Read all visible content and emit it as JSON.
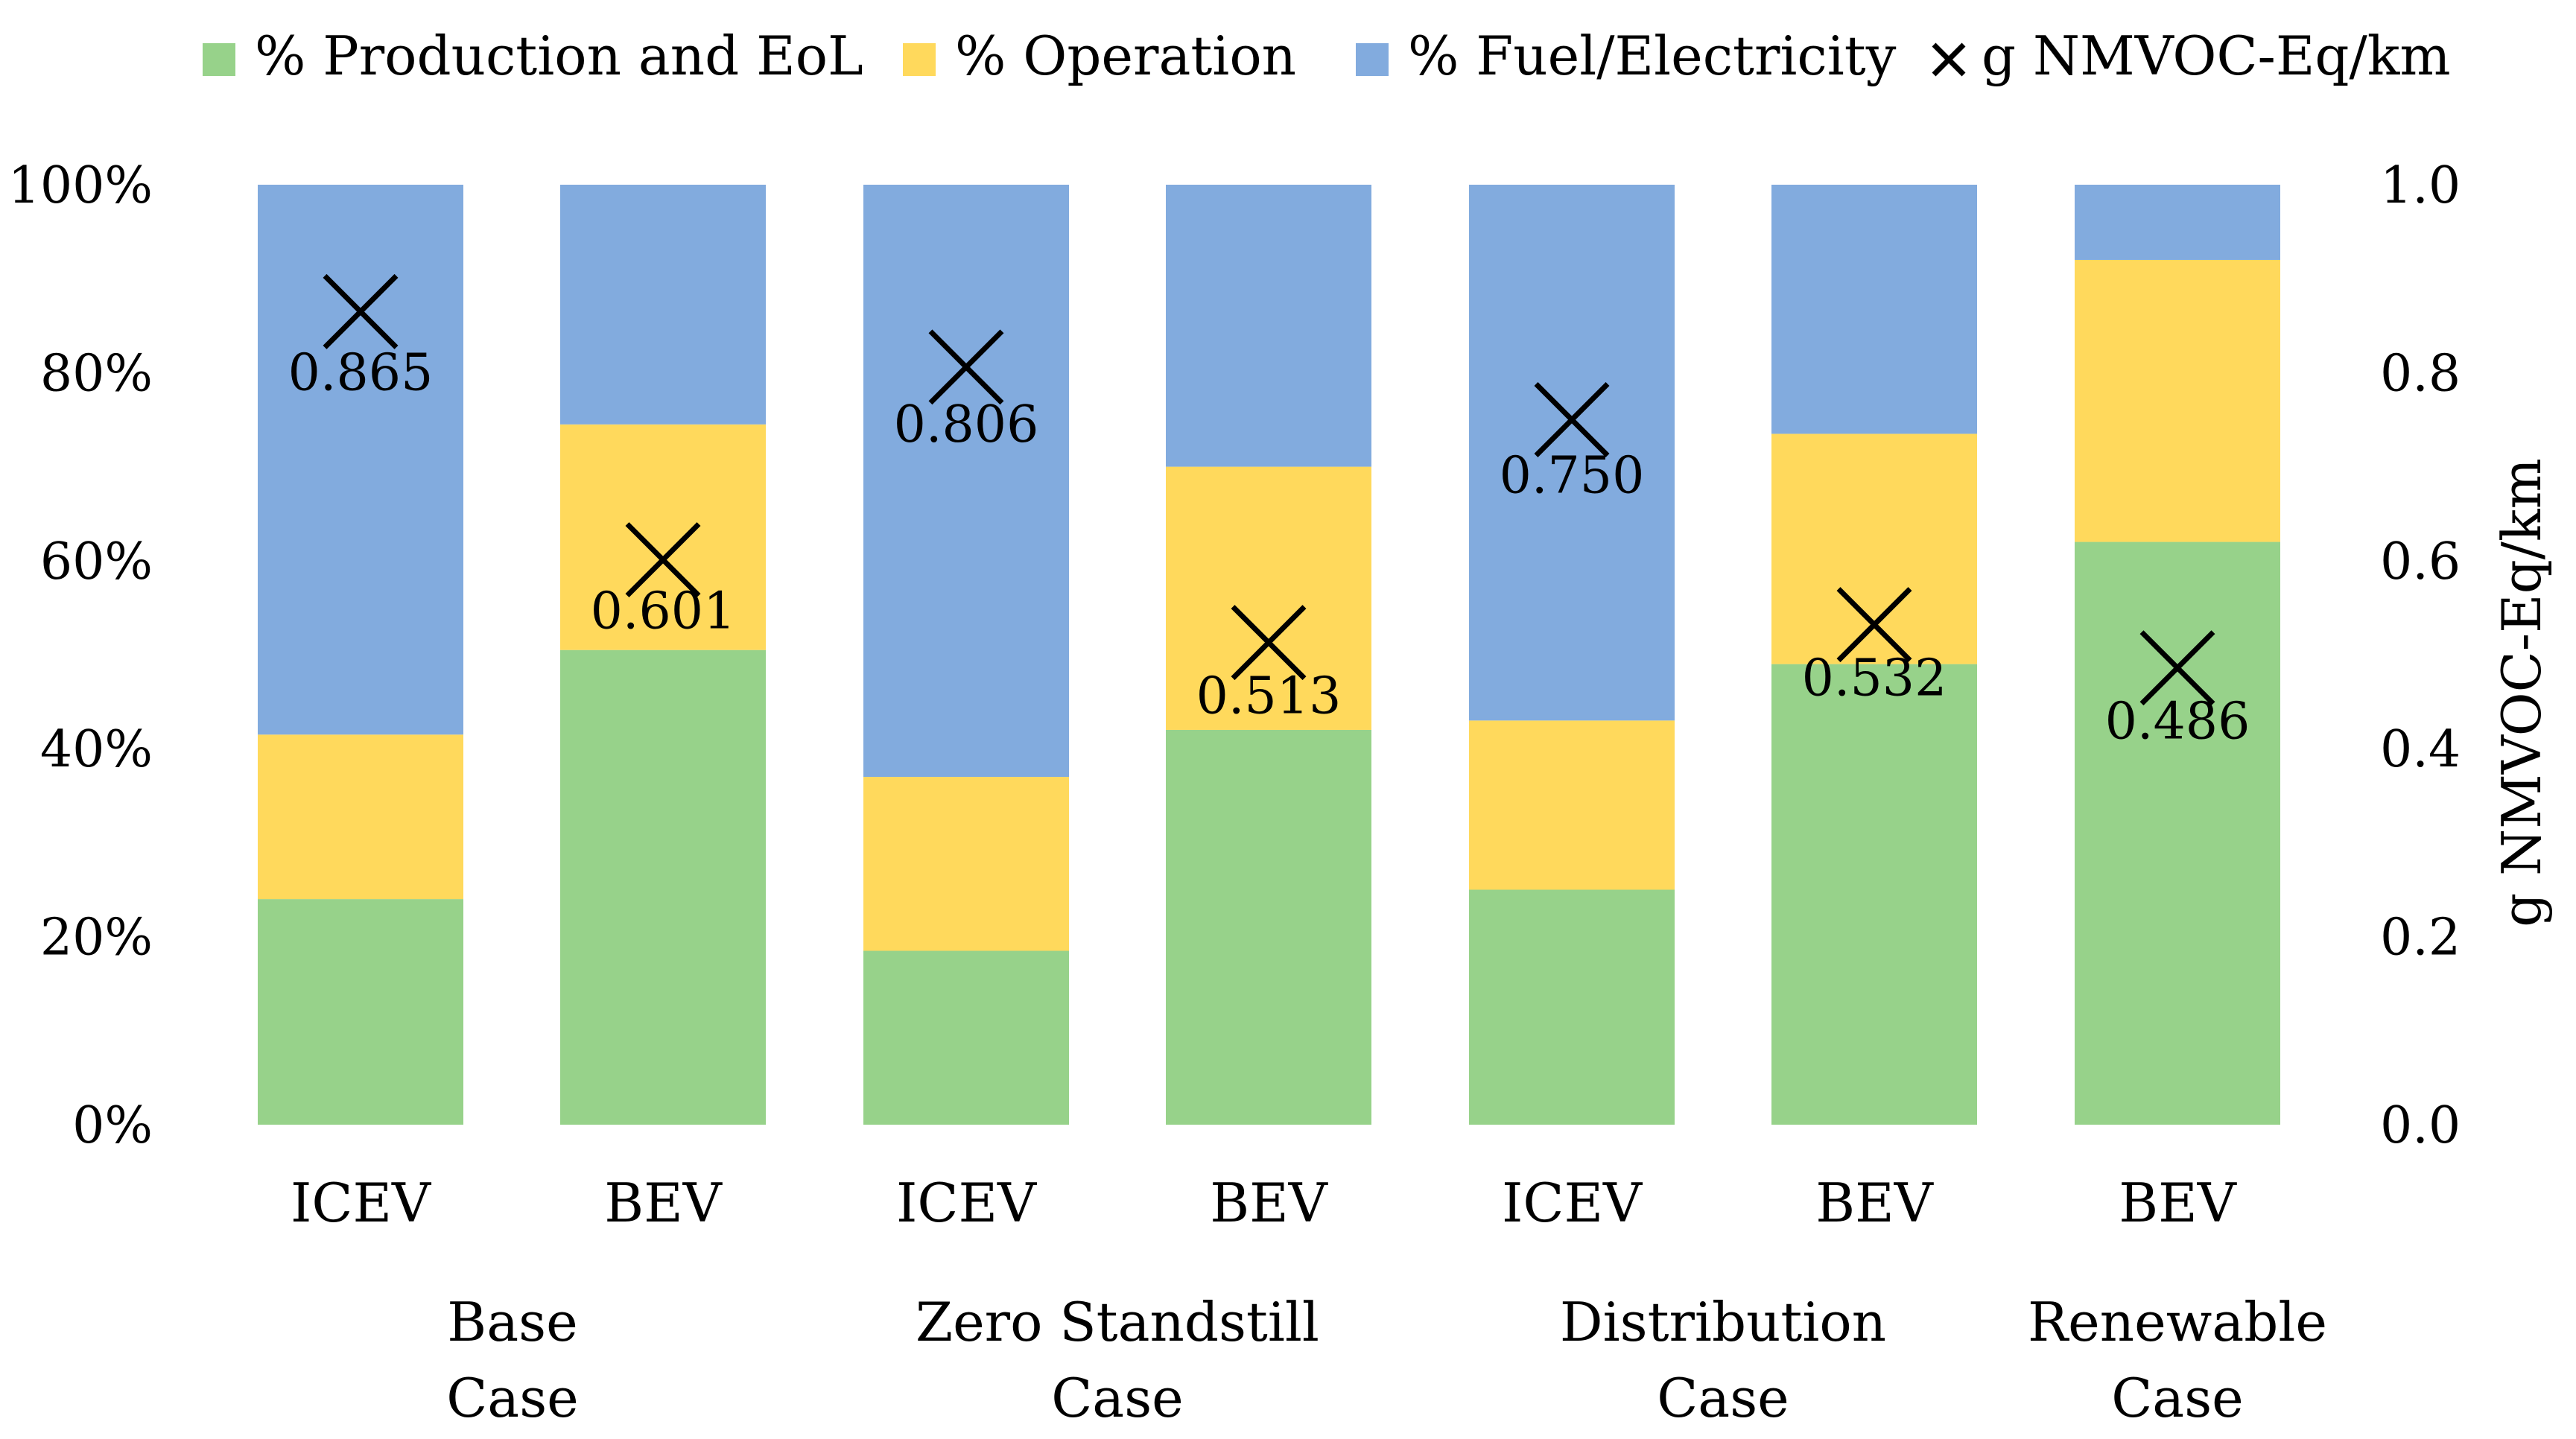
{
  "chart_data": {
    "type": "bar",
    "stacked": true,
    "normalized": true,
    "categories": [
      "ICEV",
      "BEV",
      "ICEV",
      "BEV",
      "ICEV",
      "BEV",
      "BEV"
    ],
    "groups": [
      {
        "label_line1": "Base",
        "label_line2": "Case",
        "members": [
          0,
          1
        ]
      },
      {
        "label_line1": "Zero Standstill",
        "label_line2": "Case",
        "members": [
          2,
          3
        ]
      },
      {
        "label_line1": "Distribution",
        "label_line2": "Case",
        "members": [
          4,
          5
        ]
      },
      {
        "label_line1": "Renewable",
        "label_line2": "Case",
        "members": [
          6
        ]
      }
    ],
    "series": [
      {
        "name": "% Production and EoL",
        "color": "#97D28A",
        "values": [
          24,
          50.5,
          18.5,
          42,
          25,
          49,
          62
        ]
      },
      {
        "name": "% Operation",
        "color": "#FFD95C",
        "values": [
          17.5,
          24,
          18.5,
          28,
          18,
          24.5,
          30
        ]
      },
      {
        "name": "% Fuel/Electricity",
        "color": "#82ABDE",
        "values": [
          58.5,
          25.5,
          63,
          30,
          57,
          26.5,
          8
        ]
      }
    ],
    "markers": {
      "name": "g NMVOC-Eq/km",
      "symbol": "×",
      "values": [
        0.865,
        0.601,
        0.806,
        0.513,
        0.75,
        0.532,
        0.486
      ],
      "labels": [
        "0.865",
        "0.601",
        "0.806",
        "0.513",
        "0.750",
        "0.532",
        "0.486"
      ]
    },
    "y_left": {
      "min": 0,
      "max": 100,
      "ticks": [
        0,
        20,
        40,
        60,
        80,
        100
      ],
      "tick_labels": [
        "0%",
        "20%",
        "40%",
        "60%",
        "80%",
        "100%"
      ]
    },
    "y_right": {
      "min": 0,
      "max": 1,
      "ticks": [
        0,
        0.2,
        0.4,
        0.6,
        0.8,
        1.0
      ],
      "tick_labels": [
        "0.0",
        "0.2",
        "0.4",
        "0.6",
        "0.8",
        "1.0"
      ],
      "label": "g NMVOC-Eq/km"
    },
    "legend_position": "top",
    "grid": false
  }
}
